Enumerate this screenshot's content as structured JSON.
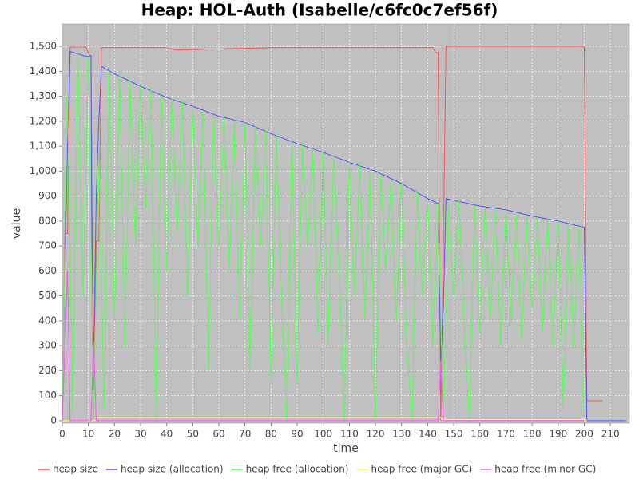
{
  "chart_data": {
    "type": "line",
    "title": "Heap: HOL-Auth (Isabelle/c6fc0c7ef56f)",
    "x_label": "time",
    "y_label": "value",
    "xlim": [
      0,
      217.3
    ],
    "ylim": [
      -10,
      1590
    ],
    "xticks": [
      0,
      10,
      20,
      30,
      40,
      50,
      60,
      70,
      80,
      90,
      100,
      110,
      120,
      130,
      140,
      150,
      160,
      170,
      180,
      190,
      200,
      210
    ],
    "yticks": [
      0,
      100,
      200,
      300,
      400,
      500,
      600,
      700,
      800,
      900,
      {
        "value": 1000,
        "label": "1,000"
      },
      {
        "value": 1100,
        "label": "1,100"
      },
      {
        "value": 1200,
        "label": "1,200"
      },
      {
        "value": 1300,
        "label": "1,300"
      },
      {
        "value": 1400,
        "label": "1,400"
      },
      {
        "value": 1500,
        "label": "1,500"
      }
    ],
    "grid": true,
    "legend": "bottom",
    "series": [
      {
        "name": "heap size",
        "color": "#ff5555",
        "x": [
          0,
          1,
          2,
          3,
          6,
          9,
          10.5,
          11,
          11.5,
          12,
          13,
          14,
          15,
          40,
          43,
          80,
          110,
          142,
          143,
          144,
          145,
          146,
          147,
          170,
          199,
          200,
          201,
          207
        ],
        "values": [
          0,
          750,
          750,
          1497,
          1497,
          1497,
          1465,
          1465,
          700,
          0,
          720,
          720,
          1495,
          1495,
          1485,
          1495,
          1495,
          1495,
          1475,
          1475,
          0,
          700,
          1500,
          1500,
          1500,
          1497,
          80,
          80
        ]
      },
      {
        "name": "heap size (allocation)",
        "color": "#5555ff",
        "x": [
          0,
          1,
          2,
          3,
          6,
          9,
          11,
          11.5,
          12,
          13,
          14,
          15,
          20,
          30,
          40,
          50,
          60,
          70,
          80,
          90,
          100,
          110,
          120,
          130,
          140,
          144,
          145,
          146,
          147,
          160,
          170,
          180,
          190,
          200,
          201,
          216
        ],
        "values": [
          0,
          600,
          1100,
          1480,
          1470,
          1460,
          1460,
          300,
          260,
          900,
          1200,
          1420,
          1390,
          1340,
          1295,
          1260,
          1220,
          1195,
          1150,
          1110,
          1075,
          1035,
          1000,
          950,
          890,
          870,
          240,
          450,
          890,
          860,
          845,
          820,
          800,
          775,
          0,
          0
        ]
      },
      {
        "name": "heap free (allocation)",
        "color": "#55ff55",
        "x": [
          0,
          2,
          4,
          6,
          8,
          10,
          12,
          14,
          16,
          18,
          20,
          22,
          24,
          26,
          28,
          30,
          32,
          34,
          36,
          38,
          40,
          42,
          44,
          46,
          48,
          50,
          52,
          54,
          56,
          58,
          60,
          62,
          64,
          66,
          68,
          70,
          72,
          74,
          76,
          78,
          80,
          82,
          84,
          86,
          88,
          90,
          92,
          94,
          96,
          98,
          100,
          102,
          104,
          106,
          108,
          110,
          112,
          114,
          116,
          118,
          120,
          122,
          124,
          126,
          128,
          130,
          132,
          134,
          136,
          138,
          140,
          142,
          144,
          146,
          148,
          150,
          152,
          154,
          156,
          158,
          160,
          162,
          164,
          166,
          168,
          170,
          172,
          174,
          176,
          178,
          180,
          182,
          184,
          186,
          188,
          190,
          192,
          194,
          196,
          198,
          200
        ],
        "values": [
          0,
          1300,
          30,
          1470,
          500,
          1460,
          10,
          1100,
          50,
          1400,
          400,
          1390,
          300,
          1370,
          700,
          1345,
          850,
          1340,
          0,
          1300,
          600,
          1295,
          750,
          1285,
          500,
          1260,
          700,
          1240,
          200,
          1225,
          700,
          1215,
          600,
          1205,
          400,
          1195,
          200,
          1180,
          700,
          1165,
          150,
          1150,
          500,
          0,
          1130,
          150,
          1110,
          700,
          1095,
          350,
          1075,
          300,
          1060,
          650,
          0,
          1035,
          500,
          1030,
          400,
          1010,
          0,
          990,
          600,
          965,
          400,
          950,
          300,
          0,
          920,
          500,
          880,
          300,
          870,
          0,
          880,
          500,
          880,
          400,
          0,
          860,
          350,
          855,
          400,
          850,
          300,
          840,
          400,
          825,
          320,
          820,
          450,
          815,
          350,
          810,
          300,
          800,
          50,
          790,
          300,
          780,
          0
        ]
      },
      {
        "name": "heap free (major GC)",
        "color": "#ffff55",
        "x": [
          0,
          12,
          12.5,
          145,
          145.5,
          200,
          201
        ],
        "values": [
          0,
          0,
          12,
          12,
          5,
          5,
          0
        ]
      },
      {
        "name": "heap free (minor GC)",
        "color": "#ff55ff",
        "x": [
          0,
          1,
          2,
          3,
          11,
          12,
          13,
          144,
          145,
          146,
          200
        ],
        "values": [
          0,
          300,
          600,
          0,
          0,
          320,
          0,
          0,
          240,
          0,
          0
        ]
      }
    ]
  }
}
